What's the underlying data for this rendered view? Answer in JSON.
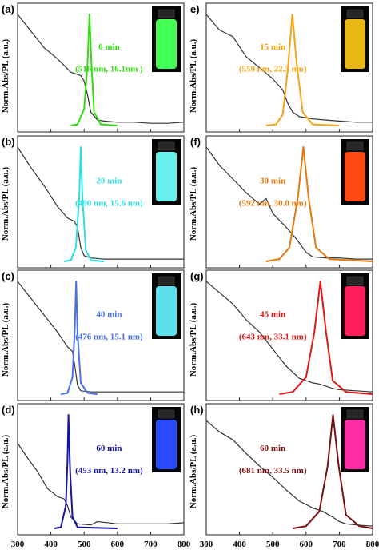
{
  "figure": {
    "y_axis_label": "Norm.Abs/PL (a.u.)",
    "x_ticks": [
      "300",
      "400",
      "500",
      "600",
      "700",
      "800"
    ]
  },
  "panels": [
    {
      "letter": "(a)",
      "time": "0 min",
      "peak": "(516 nm, 16.1nm )",
      "color": "#33dd11",
      "vial_glow": "#44ff55",
      "pl_peak_nm": 516,
      "fwhm_nm": 16.1
    },
    {
      "letter": "(b)",
      "time": "20 min",
      "peak": "(490 nm, 15.6 nm)",
      "color": "#33dddd",
      "vial_glow": "#66f2ea",
      "pl_peak_nm": 490,
      "fwhm_nm": 15.6
    },
    {
      "letter": "(c)",
      "time": "40 min",
      "peak": "(476 nm, 15.1 nm)",
      "color": "#4a72e6",
      "vial_glow": "#5ce0ee",
      "pl_peak_nm": 476,
      "fwhm_nm": 15.1
    },
    {
      "letter": "(d)",
      "time": "60 min",
      "peak": "(453 nm, 13.2 nm)",
      "color": "#1515a5",
      "vial_glow": "#2a4cff",
      "pl_peak_nm": 453,
      "fwhm_nm": 13.2
    },
    {
      "letter": "e)",
      "time": "15 min",
      "peak": "(559 nm, 22.3 nm)",
      "color": "#f5a314",
      "vial_glow": "#e8b812",
      "pl_peak_nm": 559,
      "fwhm_nm": 22.3
    },
    {
      "letter": "(f)",
      "time": "30 min",
      "peak": "(592 nm, 30.0 nm)",
      "color": "#e27a12",
      "vial_glow": "#ff4a14",
      "pl_peak_nm": 592,
      "fwhm_nm": 30.0
    },
    {
      "letter": "(g)",
      "time": "45 min",
      "peak": "(643 nm, 33.1 nm)",
      "color": "#e01818",
      "vial_glow": "#ff1f5a",
      "pl_peak_nm": 643,
      "fwhm_nm": 33.1
    },
    {
      "letter": "(h)",
      "time": "60 min",
      "peak": "(681 nm, 33.5 nm)",
      "color": "#7a1010",
      "vial_glow": "#ff2ea8",
      "pl_peak_nm": 681,
      "fwhm_nm": 33.5
    }
  ],
  "chart_data": [
    {
      "type": "line",
      "xlabel": "",
      "ylabel": "Norm.Abs/PL (a.u.)",
      "xlim": [
        300,
        800
      ],
      "series": [
        {
          "kind": "absorption",
          "color": "#333333",
          "x": [
            300,
            340,
            380,
            420,
            460,
            490,
            500,
            510,
            520,
            540,
            560,
            600,
            650,
            700,
            750,
            800
          ],
          "y": [
            1.0,
            0.85,
            0.7,
            0.6,
            0.48,
            0.45,
            0.4,
            0.28,
            0.12,
            0.05,
            0.04,
            0.03,
            0.03,
            0.02,
            0.02,
            0.03
          ]
        },
        {
          "kind": "PL",
          "color": "#33dd11",
          "x": [
            460,
            480,
            500,
            510,
            516,
            522,
            530,
            550,
            600
          ],
          "y": [
            0,
            0.01,
            0.15,
            0.55,
            1.0,
            0.55,
            0.12,
            0.01,
            0
          ]
        }
      ]
    },
    {
      "type": "line",
      "xlabel": "",
      "ylabel": "Norm.Abs/PL (a.u.)",
      "xlim": [
        300,
        800
      ],
      "series": [
        {
          "kind": "absorption",
          "color": "#333333",
          "x": [
            300,
            340,
            380,
            420,
            450,
            470,
            480,
            490,
            500,
            520,
            560,
            600,
            650,
            700,
            750,
            800
          ],
          "y": [
            1.0,
            0.82,
            0.66,
            0.48,
            0.38,
            0.35,
            0.3,
            0.12,
            0.05,
            0.03,
            0.02,
            0.02,
            0.02,
            0.02,
            0.02,
            0.02
          ]
        },
        {
          "kind": "PL",
          "color": "#33dddd",
          "x": [
            440,
            460,
            475,
            485,
            490,
            495,
            505,
            520,
            560
          ],
          "y": [
            0,
            0.01,
            0.12,
            0.55,
            1.0,
            0.55,
            0.1,
            0.01,
            0
          ]
        }
      ]
    },
    {
      "type": "line",
      "xlabel": "",
      "ylabel": "Norm.Abs/PL (a.u.)",
      "xlim": [
        300,
        800
      ],
      "series": [
        {
          "kind": "absorption",
          "color": "#333333",
          "x": [
            300,
            340,
            380,
            420,
            450,
            465,
            472,
            480,
            490,
            520,
            560,
            600,
            650,
            700,
            750,
            800
          ],
          "y": [
            1.0,
            0.85,
            0.7,
            0.55,
            0.42,
            0.38,
            0.25,
            0.08,
            0.03,
            0.02,
            0.02,
            0.02,
            0.02,
            0.02,
            0.02,
            0.02
          ]
        },
        {
          "kind": "PL",
          "color": "#4a72e6",
          "x": [
            430,
            450,
            465,
            472,
            476,
            480,
            490,
            510,
            540
          ],
          "y": [
            0,
            0.01,
            0.15,
            0.6,
            1.0,
            0.55,
            0.1,
            0.01,
            0
          ]
        }
      ]
    },
    {
      "type": "line",
      "xlabel": "",
      "ylabel": "Norm.Abs/PL (a.u.)",
      "xlim": [
        300,
        800
      ],
      "series": [
        {
          "kind": "absorption",
          "color": "#333333",
          "x": [
            300,
            330,
            360,
            390,
            420,
            440,
            450,
            460,
            480,
            520,
            540,
            600,
            650,
            700,
            750,
            800
          ],
          "y": [
            0.75,
            0.62,
            0.5,
            0.35,
            0.28,
            0.26,
            0.2,
            0.1,
            0.04,
            0.03,
            0.06,
            0.04,
            0.04,
            0.04,
            0.04,
            0.05
          ]
        },
        {
          "kind": "PL",
          "color": "#1515a5",
          "x": [
            410,
            430,
            445,
            450,
            453,
            458,
            465,
            480,
            600
          ],
          "y": [
            0,
            0.01,
            0.2,
            0.6,
            1.0,
            0.5,
            0.1,
            0.01,
            0
          ]
        }
      ]
    },
    {
      "type": "line",
      "xlabel": "",
      "ylabel": "Norm.Abs/PL (a.u.)",
      "xlim": [
        300,
        800
      ],
      "series": [
        {
          "kind": "absorption",
          "color": "#333333",
          "x": [
            300,
            340,
            380,
            420,
            460,
            500,
            530,
            545,
            560,
            580,
            620,
            660,
            700,
            750,
            800
          ],
          "y": [
            1.0,
            0.86,
            0.8,
            0.62,
            0.52,
            0.42,
            0.32,
            0.2,
            0.12,
            0.08,
            0.06,
            0.05,
            0.04,
            0.03,
            0.03
          ]
        },
        {
          "kind": "PL",
          "color": "#f5a314",
          "x": [
            480,
            510,
            530,
            545,
            559,
            572,
            590,
            620,
            700
          ],
          "y": [
            0,
            0.01,
            0.1,
            0.5,
            1.0,
            0.55,
            0.12,
            0.01,
            0
          ]
        }
      ]
    },
    {
      "type": "line",
      "xlabel": "",
      "ylabel": "Norm.Abs/PL (a.u.)",
      "xlim": [
        300,
        800
      ],
      "series": [
        {
          "kind": "absorption",
          "color": "#333333",
          "x": [
            300,
            340,
            380,
            420,
            460,
            480,
            500,
            540,
            570,
            600,
            620,
            660,
            700,
            750,
            800
          ],
          "y": [
            1.0,
            0.84,
            0.72,
            0.6,
            0.5,
            0.55,
            0.42,
            0.3,
            0.2,
            0.08,
            0.04,
            0.03,
            0.03,
            0.02,
            0.02
          ]
        },
        {
          "kind": "PL",
          "color": "#e27a12",
          "x": [
            480,
            520,
            550,
            575,
            592,
            608,
            630,
            670,
            800
          ],
          "y": [
            0,
            0.02,
            0.12,
            0.55,
            1.0,
            0.55,
            0.12,
            0.02,
            0
          ]
        }
      ]
    },
    {
      "type": "line",
      "xlabel": "",
      "ylabel": "Norm.Abs/PL (a.u.)",
      "xlim": [
        300,
        800
      ],
      "series": [
        {
          "kind": "absorption",
          "color": "#333333",
          "x": [
            300,
            340,
            380,
            420,
            460,
            500,
            540,
            580,
            620,
            640,
            660,
            680,
            700,
            750,
            800
          ],
          "y": [
            1.0,
            0.9,
            0.8,
            0.66,
            0.55,
            0.4,
            0.25,
            0.14,
            0.1,
            0.09,
            0.07,
            0.05,
            0.04,
            0.03,
            0.02
          ]
        },
        {
          "kind": "PL",
          "color": "#e01818",
          "x": [
            520,
            560,
            600,
            625,
            643,
            660,
            680,
            720,
            800
          ],
          "y": [
            0,
            0.02,
            0.15,
            0.55,
            1.0,
            0.55,
            0.12,
            0.02,
            0
          ]
        }
      ]
    },
    {
      "type": "line",
      "xlabel": "",
      "ylabel": "Norm.Abs/PL (a.u.)",
      "xlim": [
        300,
        800
      ],
      "series": [
        {
          "kind": "absorption",
          "color": "#333333",
          "x": [
            300,
            340,
            380,
            420,
            460,
            500,
            540,
            580,
            620,
            650,
            680,
            700,
            720,
            750,
            800
          ],
          "y": [
            0.95,
            0.85,
            0.78,
            0.66,
            0.55,
            0.45,
            0.34,
            0.24,
            0.18,
            0.15,
            0.1,
            0.06,
            0.04,
            0.03,
            0.02
          ]
        },
        {
          "kind": "PL",
          "color": "#7a1010",
          "x": [
            560,
            600,
            640,
            665,
            681,
            698,
            720,
            760,
            800
          ],
          "y": [
            0,
            0.02,
            0.15,
            0.55,
            1.0,
            0.55,
            0.12,
            0.02,
            0
          ]
        }
      ]
    }
  ]
}
